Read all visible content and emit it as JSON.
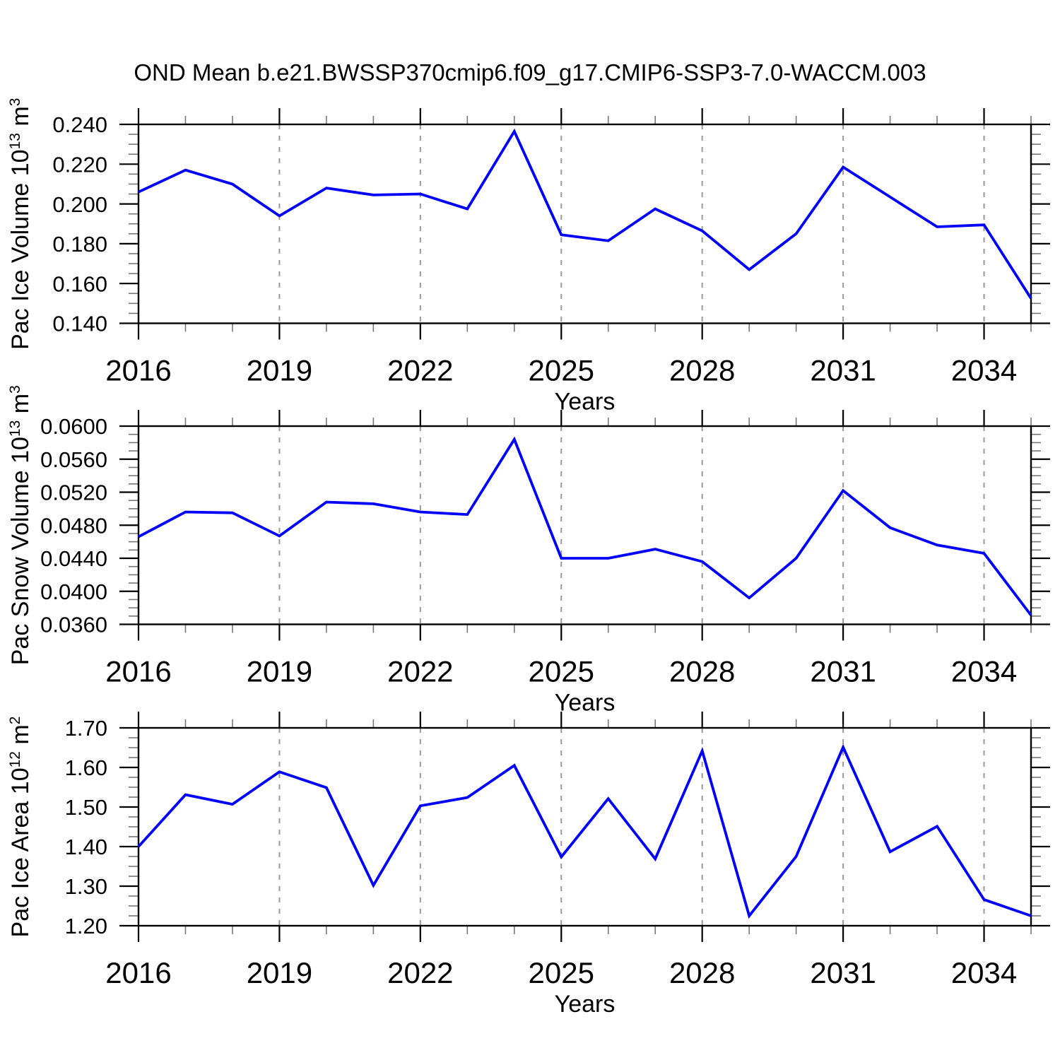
{
  "title": "OND Mean b.e21.BWSSP370cmip6.f09_g17.CMIP6-SSP3-7.0-WACCM.003",
  "x_axis": {
    "label": "Years",
    "range": [
      2016,
      2035
    ],
    "major_ticks": [
      2016,
      2019,
      2022,
      2025,
      2028,
      2031,
      2034
    ],
    "minor_step": 1,
    "gridline_ticks": [
      2019,
      2022,
      2025,
      2028,
      2031,
      2034
    ]
  },
  "years": [
    2016,
    2017,
    2018,
    2019,
    2020,
    2021,
    2022,
    2023,
    2024,
    2025,
    2026,
    2027,
    2028,
    2029,
    2030,
    2031,
    2032,
    2033,
    2034,
    2035
  ],
  "chart_data": [
    {
      "type": "line",
      "name": "pac-ice-volume",
      "ylabel_text": "Pac Ice Volume 10^13 m^3",
      "ylabel_parts": [
        {
          "t": "Pac Ice Volume 10"
        },
        {
          "t": "13",
          "sup": true
        },
        {
          "t": " m"
        },
        {
          "t": "3",
          "sup": true
        }
      ],
      "xlabel": "Years",
      "ylim": [
        0.14,
        0.24
      ],
      "ytick_values": [
        0.14,
        0.16,
        0.18,
        0.2,
        0.22,
        0.24
      ],
      "ytick_labels": [
        "0.140",
        "0.160",
        "0.180",
        "0.200",
        "0.220",
        "0.240"
      ],
      "y_minor_step": 0.005,
      "values": [
        0.206,
        0.217,
        0.21,
        0.194,
        0.208,
        0.2045,
        0.205,
        0.1975,
        0.2365,
        0.1845,
        0.1815,
        0.1975,
        0.1865,
        0.167,
        0.185,
        0.2185,
        0.2035,
        0.1885,
        0.1895,
        0.1525
      ]
    },
    {
      "type": "line",
      "name": "pac-snow-volume",
      "ylabel_text": "Pac Snow Volume 10^13 m^3",
      "ylabel_parts": [
        {
          "t": "Pac Snow Volume 10"
        },
        {
          "t": "13",
          "sup": true
        },
        {
          "t": " m"
        },
        {
          "t": "3",
          "sup": true
        }
      ],
      "xlabel": "Years",
      "ylim": [
        0.036,
        0.06
      ],
      "ytick_values": [
        0.036,
        0.04,
        0.044,
        0.048,
        0.052,
        0.056,
        0.06
      ],
      "ytick_labels": [
        "0.0360",
        "0.0400",
        "0.0440",
        "0.0480",
        "0.0520",
        "0.0560",
        "0.0600"
      ],
      "y_minor_step": 0.001,
      "values": [
        0.0466,
        0.0496,
        0.0495,
        0.0467,
        0.0508,
        0.0506,
        0.0496,
        0.0493,
        0.0584,
        0.044,
        0.044,
        0.0451,
        0.0436,
        0.0392,
        0.044,
        0.0522,
        0.0477,
        0.0456,
        0.0446,
        0.0371
      ]
    },
    {
      "type": "line",
      "name": "pac-ice-area",
      "ylabel_text": "Pac Ice Area 10^12 m^2",
      "ylabel_parts": [
        {
          "t": "Pac Ice Area 10"
        },
        {
          "t": "12",
          "sup": true
        },
        {
          "t": " m"
        },
        {
          "t": "2",
          "sup": true
        }
      ],
      "xlabel": "Years",
      "ylim": [
        1.2,
        1.7
      ],
      "ytick_values": [
        1.2,
        1.3,
        1.4,
        1.5,
        1.6,
        1.7
      ],
      "ytick_labels": [
        "1.20",
        "1.30",
        "1.40",
        "1.50",
        "1.60",
        "1.70"
      ],
      "y_minor_step": 0.025,
      "values": [
        1.4,
        1.531,
        1.507,
        1.589,
        1.549,
        1.302,
        1.503,
        1.524,
        1.605,
        1.374,
        1.521,
        1.369,
        1.642,
        1.225,
        1.375,
        1.651,
        1.387,
        1.451,
        1.266,
        1.225
      ]
    }
  ],
  "style": {
    "line_color": "#0000ff",
    "grid_color": "#999999",
    "frame_color": "#000000",
    "minor_tick_color": "#777777"
  }
}
